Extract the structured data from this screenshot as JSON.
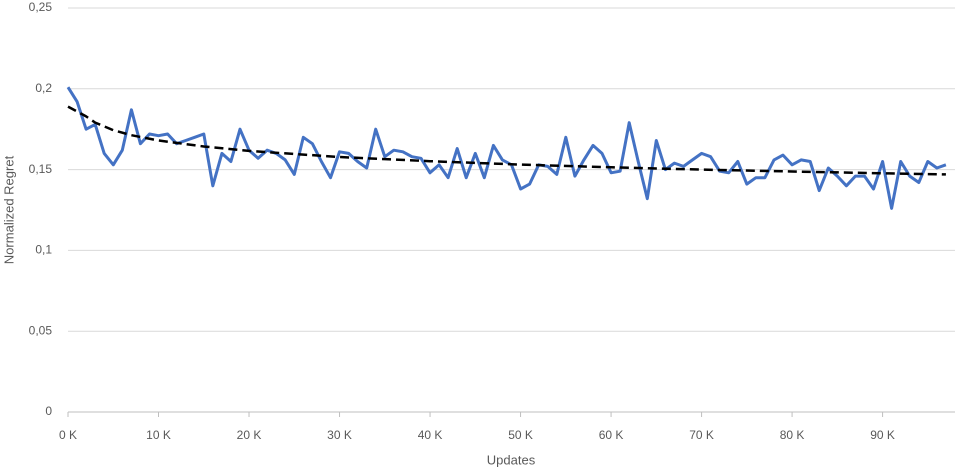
{
  "chart_data": {
    "type": "line",
    "x_label": "Updates",
    "y_label": "Normalized Regret",
    "xlim": [
      0,
      98000
    ],
    "ylim": [
      0,
      0.25
    ],
    "xticks": [
      {
        "value": 0,
        "label": "0 K"
      },
      {
        "value": 10000,
        "label": "10 K"
      },
      {
        "value": 20000,
        "label": "20 K"
      },
      {
        "value": 30000,
        "label": "30 K"
      },
      {
        "value": 40000,
        "label": "40 K"
      },
      {
        "value": 50000,
        "label": "50 K"
      },
      {
        "value": 60000,
        "label": "60 K"
      },
      {
        "value": 70000,
        "label": "70 K"
      },
      {
        "value": 80000,
        "label": "80 K"
      },
      {
        "value": 90000,
        "label": "90 K"
      }
    ],
    "yticks": [
      0,
      {
        "value": 0.05,
        "label": "0,05"
      },
      {
        "value": 0.1,
        "label": "0,1"
      },
      {
        "value": 0.15,
        "label": "0,15"
      },
      {
        "value": 0.2,
        "label": "0,2"
      },
      {
        "value": 0.25,
        "label": "0,25"
      }
    ],
    "grid": true,
    "series": [
      {
        "color": "#4472c4",
        "dash": false,
        "x": [
          0,
          1000,
          2000,
          3000,
          4000,
          5000,
          6000,
          7000,
          8000,
          9000,
          10000,
          11000,
          12000,
          13000,
          14000,
          15000,
          16000,
          17000,
          18000,
          19000,
          20000,
          21000,
          22000,
          23000,
          24000,
          25000,
          26000,
          27000,
          28000,
          29000,
          30000,
          31000,
          32000,
          33000,
          34000,
          35000,
          36000,
          37000,
          38000,
          39000,
          40000,
          41000,
          42000,
          43000,
          44000,
          45000,
          46000,
          47000,
          48000,
          49000,
          50000,
          51000,
          52000,
          53000,
          54000,
          55000,
          56000,
          57000,
          58000,
          59000,
          60000,
          61000,
          62000,
          63000,
          64000,
          65000,
          66000,
          67000,
          68000,
          69000,
          70000,
          71000,
          72000,
          73000,
          74000,
          75000,
          76000,
          77000,
          78000,
          79000,
          80000,
          81000,
          82000,
          83000,
          84000,
          85000,
          86000,
          87000,
          88000,
          89000,
          90000,
          91000,
          92000,
          93000,
          94000,
          95000,
          96000,
          97000
        ],
        "values": [
          0.201,
          0.192,
          0.175,
          0.178,
          0.16,
          0.153,
          0.162,
          0.187,
          0.166,
          0.172,
          0.171,
          0.172,
          0.166,
          0.168,
          0.17,
          0.172,
          0.14,
          0.16,
          0.155,
          0.175,
          0.162,
          0.157,
          0.162,
          0.16,
          0.156,
          0.147,
          0.17,
          0.166,
          0.155,
          0.145,
          0.161,
          0.16,
          0.155,
          0.151,
          0.175,
          0.158,
          0.162,
          0.161,
          0.158,
          0.157,
          0.148,
          0.153,
          0.145,
          0.163,
          0.145,
          0.16,
          0.145,
          0.165,
          0.156,
          0.153,
          0.138,
          0.141,
          0.153,
          0.152,
          0.147,
          0.17,
          0.146,
          0.156,
          0.165,
          0.16,
          0.148,
          0.149,
          0.179,
          0.155,
          0.132,
          0.168,
          0.15,
          0.154,
          0.152,
          0.156,
          0.16,
          0.158,
          0.149,
          0.148,
          0.155,
          0.141,
          0.145,
          0.145,
          0.156,
          0.159,
          0.153,
          0.156,
          0.155,
          0.137,
          0.151,
          0.146,
          0.14,
          0.146,
          0.146,
          0.138,
          0.155,
          0.126,
          0.155,
          0.146,
          0.142,
          0.155,
          0.151,
          0.153
        ]
      },
      {
        "color": "#000000",
        "dash": true,
        "x": [
          0,
          2000,
          3000,
          5000,
          7000,
          10000,
          15000,
          20000,
          30000,
          40000,
          50000,
          60000,
          70000,
          80000,
          90000,
          97000
        ],
        "values": [
          0.189,
          0.1829,
          0.1791,
          0.1744,
          0.1713,
          0.168,
          0.1643,
          0.1616,
          0.1578,
          0.1552,
          0.1531,
          0.1514,
          0.15,
          0.1488,
          0.1477,
          0.147
        ]
      }
    ]
  }
}
